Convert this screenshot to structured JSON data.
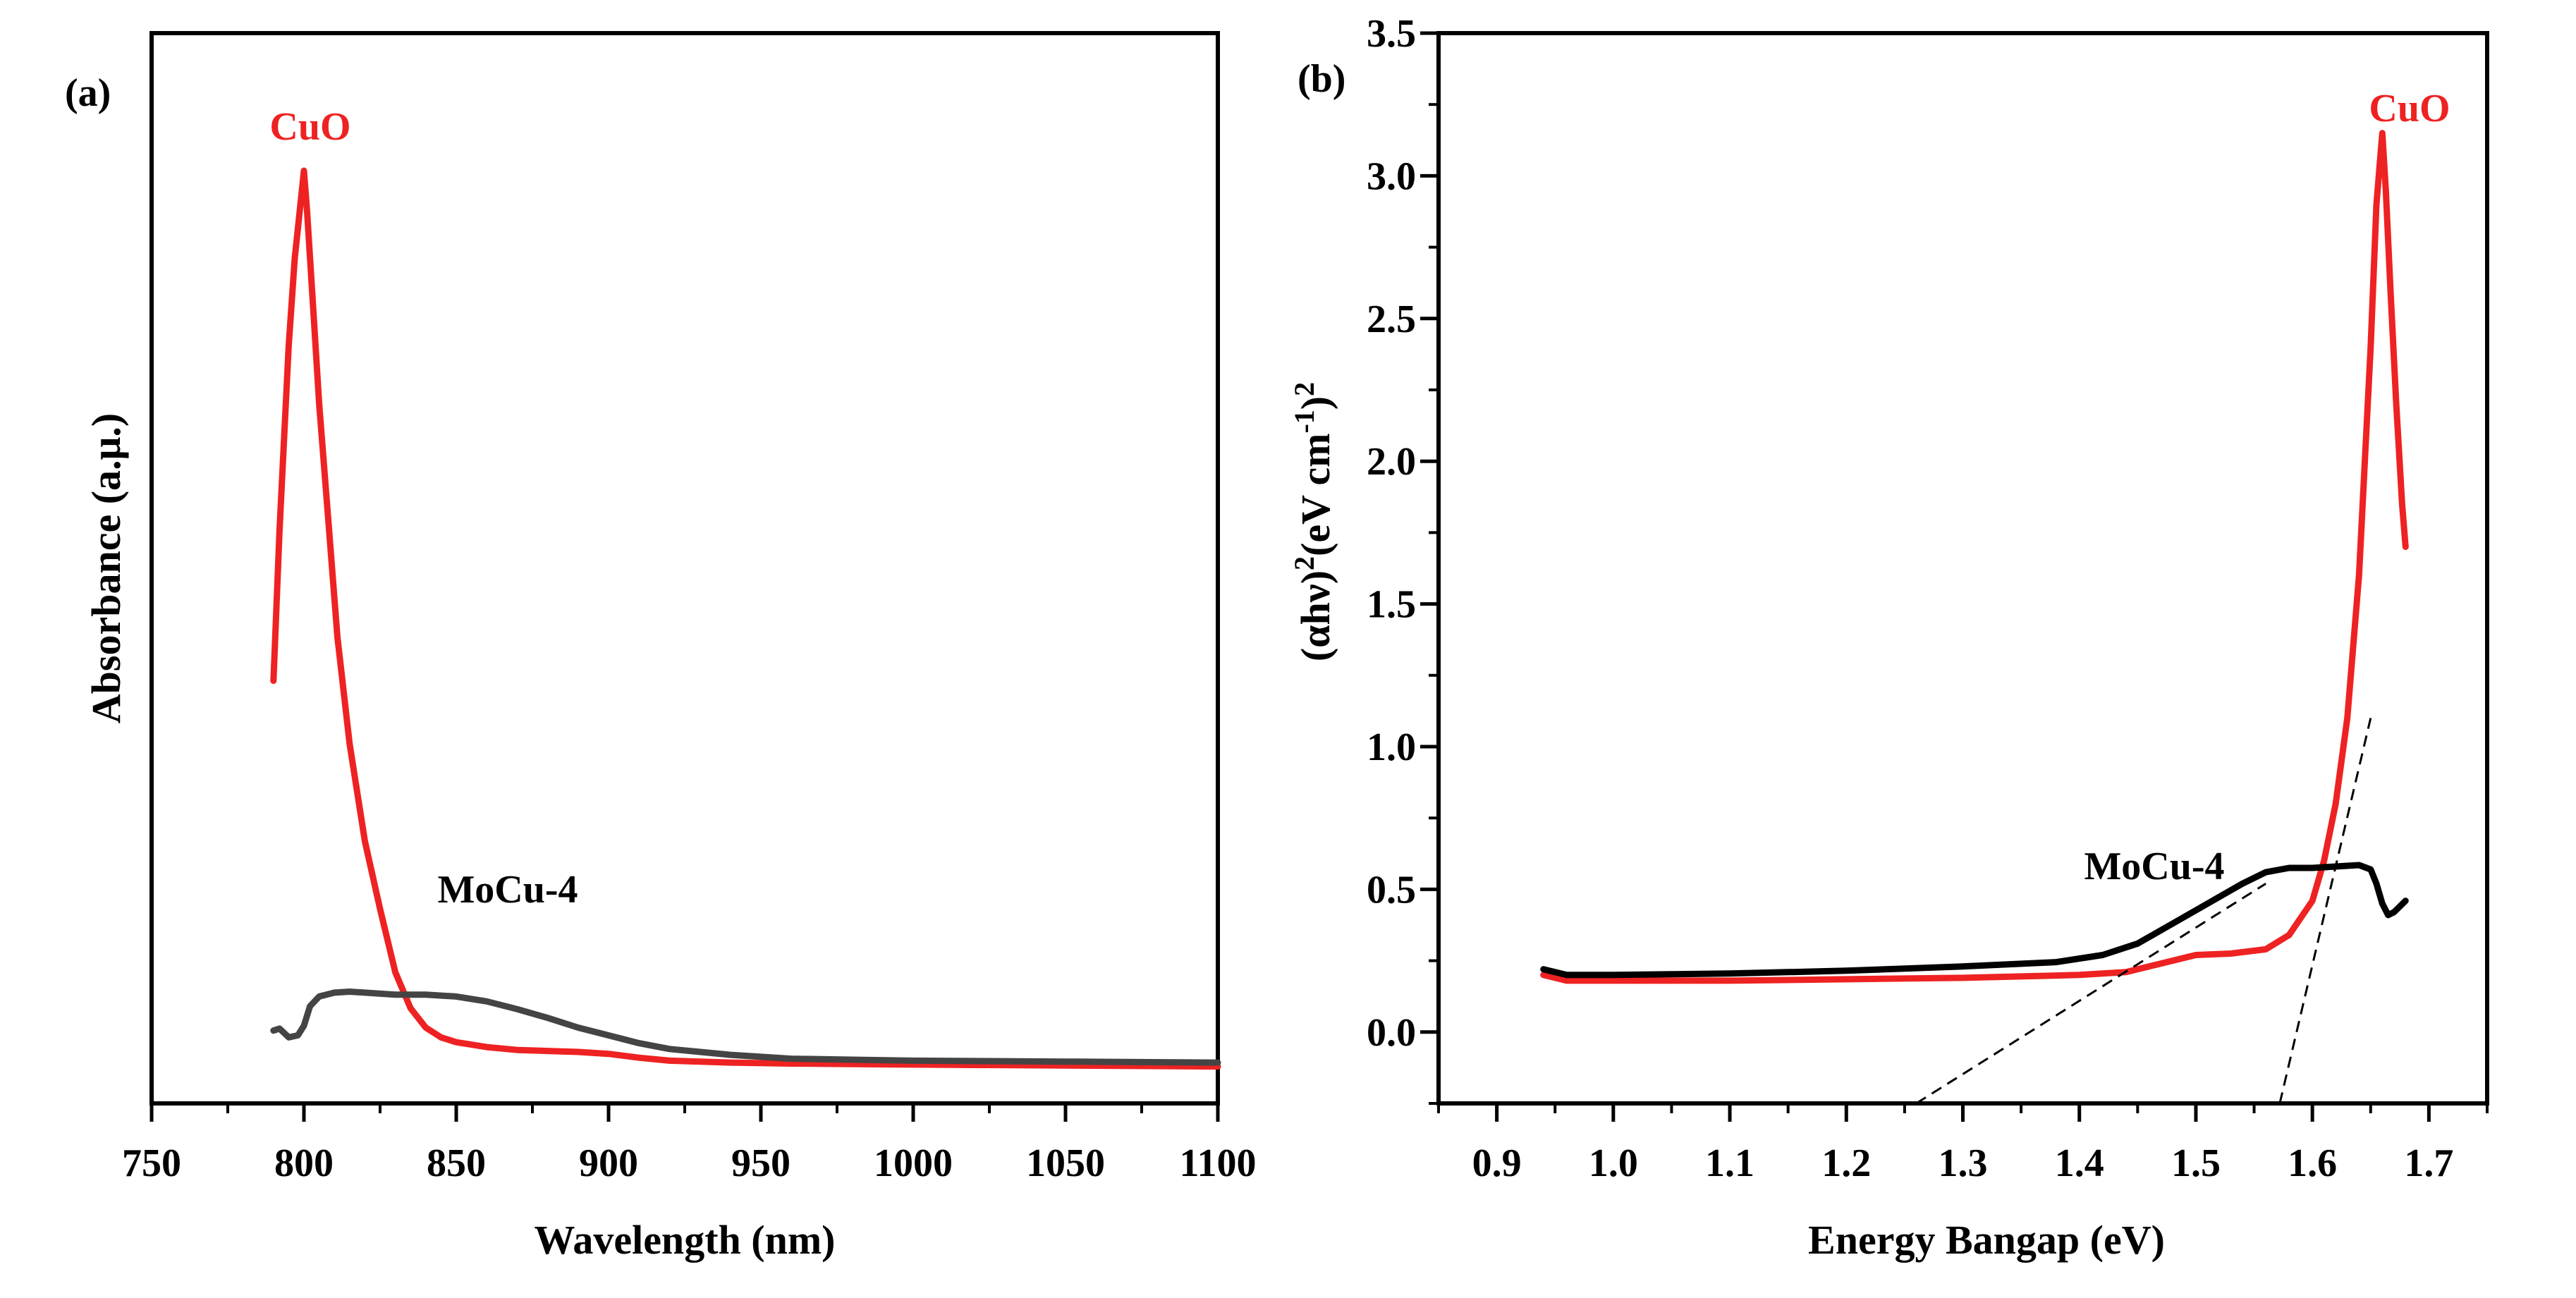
{
  "colors": {
    "cuo": "#ee2222",
    "mocu_a": "#444444",
    "mocu_b": "#000000"
  },
  "chart_data": [
    {
      "type": "line",
      "panel_label": "(a)",
      "title": "",
      "xlabel": "Wavelength (nm)",
      "ylabel": "Absorbance (a.μ.)",
      "xlim": [
        750,
        1100
      ],
      "ylim": [
        0,
        1
      ],
      "xticks": [
        "750",
        "800",
        "850",
        "900",
        "950",
        "1000",
        "1050",
        "1100"
      ],
      "series": [
        {
          "name": "CuO",
          "label": "CuO",
          "color": "#ee2222",
          "points": [
            [
              790,
              0.435
            ],
            [
              792,
              0.59
            ],
            [
              795,
              0.78
            ],
            [
              797,
              0.87
            ],
            [
              799,
              0.93
            ],
            [
              800,
              0.96
            ],
            [
              801,
              0.92
            ],
            [
              803,
              0.82
            ],
            [
              805,
              0.72
            ],
            [
              808,
              0.6
            ],
            [
              811,
              0.48
            ],
            [
              815,
              0.37
            ],
            [
              820,
              0.27
            ],
            [
              825,
              0.2
            ],
            [
              830,
              0.135
            ],
            [
              835,
              0.098
            ],
            [
              840,
              0.078
            ],
            [
              845,
              0.068
            ],
            [
              850,
              0.063
            ],
            [
              860,
              0.058
            ],
            [
              870,
              0.055
            ],
            [
              880,
              0.054
            ],
            [
              890,
              0.053
            ],
            [
              900,
              0.051
            ],
            [
              910,
              0.047
            ],
            [
              920,
              0.044
            ],
            [
              940,
              0.042
            ],
            [
              960,
              0.041
            ],
            [
              1000,
              0.04
            ],
            [
              1050,
              0.039
            ],
            [
              1100,
              0.038
            ]
          ]
        },
        {
          "name": "MoCu-4",
          "label": "MoCu-4",
          "color": "#444444",
          "points": [
            [
              790,
              0.075
            ],
            [
              792,
              0.077
            ],
            [
              795,
              0.068
            ],
            [
              798,
              0.07
            ],
            [
              800,
              0.08
            ],
            [
              802,
              0.1
            ],
            [
              805,
              0.11
            ],
            [
              810,
              0.114
            ],
            [
              815,
              0.115
            ],
            [
              820,
              0.114
            ],
            [
              830,
              0.112
            ],
            [
              840,
              0.112
            ],
            [
              850,
              0.11
            ],
            [
              860,
              0.105
            ],
            [
              870,
              0.097
            ],
            [
              880,
              0.088
            ],
            [
              890,
              0.078
            ],
            [
              900,
              0.07
            ],
            [
              910,
              0.062
            ],
            [
              920,
              0.056
            ],
            [
              940,
              0.05
            ],
            [
              960,
              0.046
            ],
            [
              980,
              0.045
            ],
            [
              1000,
              0.044
            ],
            [
              1050,
              0.043
            ],
            [
              1100,
              0.042
            ]
          ]
        }
      ]
    },
    {
      "type": "line",
      "panel_label": "(b)",
      "title": "",
      "xlabel": "Energy Bangap (eV)",
      "ylabel": "(αhν)²(eV cm⁻¹)²",
      "ylabel_parts": {
        "a": "(αhν)",
        "b": "2",
        "c": "(eV cm",
        "d": "-1",
        "e": ")",
        "f": "2"
      },
      "xlim": [
        0.85,
        1.75
      ],
      "ylim": [
        -0.25,
        3.5
      ],
      "xticks": [
        "0.9",
        "1.0",
        "1.1",
        "1.2",
        "1.3",
        "1.4",
        "1.5",
        "1.6",
        "1.7"
      ],
      "yticks": [
        "0.0",
        "0.5",
        "1.0",
        "1.5",
        "2.0",
        "2.5",
        "3.0",
        "3.5"
      ],
      "series": [
        {
          "name": "CuO",
          "label": "CuO",
          "color": "#ee2222",
          "points": [
            [
              0.94,
              0.2
            ],
            [
              0.96,
              0.18
            ],
            [
              1.0,
              0.18
            ],
            [
              1.1,
              0.18
            ],
            [
              1.2,
              0.185
            ],
            [
              1.3,
              0.19
            ],
            [
              1.4,
              0.2
            ],
            [
              1.44,
              0.21
            ],
            [
              1.47,
              0.24
            ],
            [
              1.5,
              0.27
            ],
            [
              1.53,
              0.275
            ],
            [
              1.56,
              0.29
            ],
            [
              1.58,
              0.34
            ],
            [
              1.6,
              0.46
            ],
            [
              1.61,
              0.6
            ],
            [
              1.62,
              0.8
            ],
            [
              1.63,
              1.1
            ],
            [
              1.64,
              1.6
            ],
            [
              1.65,
              2.4
            ],
            [
              1.655,
              2.9
            ],
            [
              1.66,
              3.15
            ],
            [
              1.663,
              2.95
            ],
            [
              1.667,
              2.6
            ],
            [
              1.672,
              2.2
            ],
            [
              1.677,
              1.85
            ],
            [
              1.68,
              1.7
            ]
          ]
        },
        {
          "name": "MoCu-4",
          "label": "MoCu-4",
          "color": "#000000",
          "points": [
            [
              0.94,
              0.22
            ],
            [
              0.96,
              0.2
            ],
            [
              1.0,
              0.2
            ],
            [
              1.1,
              0.205
            ],
            [
              1.2,
              0.215
            ],
            [
              1.3,
              0.23
            ],
            [
              1.38,
              0.245
            ],
            [
              1.42,
              0.27
            ],
            [
              1.45,
              0.31
            ],
            [
              1.48,
              0.38
            ],
            [
              1.51,
              0.45
            ],
            [
              1.54,
              0.52
            ],
            [
              1.56,
              0.56
            ],
            [
              1.58,
              0.575
            ],
            [
              1.6,
              0.575
            ],
            [
              1.62,
              0.58
            ],
            [
              1.64,
              0.585
            ],
            [
              1.65,
              0.57
            ],
            [
              1.655,
              0.52
            ],
            [
              1.66,
              0.45
            ],
            [
              1.665,
              0.41
            ],
            [
              1.67,
              0.42
            ],
            [
              1.675,
              0.44
            ],
            [
              1.68,
              0.46
            ]
          ]
        },
        {
          "name": "tangent-MoCu-4",
          "style": "dashed",
          "color": "#000000",
          "points": [
            [
              1.26,
              -0.25
            ],
            [
              1.56,
              0.52
            ]
          ]
        },
        {
          "name": "tangent-CuO",
          "style": "dashed",
          "color": "#000000",
          "points": [
            [
              1.572,
              -0.25
            ],
            [
              1.65,
              1.1
            ]
          ]
        }
      ]
    }
  ]
}
